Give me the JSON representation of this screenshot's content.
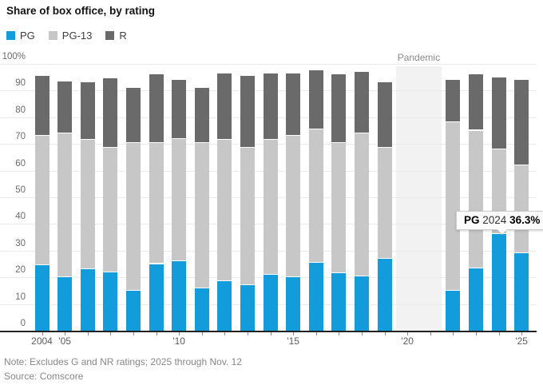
{
  "title": "Share of box office, by rating",
  "legend": [
    {
      "label": "PG",
      "color": "#139cdb"
    },
    {
      "label": "PG-13",
      "color": "#c7c7c7"
    },
    {
      "label": "R",
      "color": "#6a6a6a"
    }
  ],
  "chart_data": {
    "type": "bar",
    "stacked": true,
    "title": "Share of box office, by rating",
    "ylim": [
      0,
      100
    ],
    "ytick_step": 10,
    "ytick_top_label": "100%",
    "grid": true,
    "categories": [
      2004,
      2005,
      2006,
      2007,
      2008,
      2009,
      2010,
      2011,
      2012,
      2013,
      2014,
      2015,
      2016,
      2017,
      2018,
      2019,
      2022,
      2023,
      2024,
      2025
    ],
    "gap_years": [
      2020,
      2021
    ],
    "gap_annotation": "Pandemic",
    "x_axis_labels": [
      {
        "label": "2004",
        "year": 2004
      },
      {
        "label": "'05",
        "year": 2005
      },
      {
        "label": "'10",
        "year": 2010
      },
      {
        "label": "'15",
        "year": 2015
      },
      {
        "label": "'20",
        "year": 2020
      },
      {
        "label": "'25",
        "year": 2025
      }
    ],
    "series": [
      {
        "name": "PG",
        "color": "#139cdb",
        "values": [
          24.5,
          20,
          23,
          22,
          15,
          25,
          26,
          16,
          18.5,
          17,
          21,
          20,
          25.5,
          21.5,
          20.5,
          27,
          15,
          23.5,
          36.3,
          29
        ]
      },
      {
        "name": "PG-13",
        "color": "#c7c7c7",
        "values": [
          48.5,
          54,
          48.5,
          46.5,
          55.5,
          45.5,
          46,
          54.5,
          53,
          51.5,
          50.5,
          53,
          50,
          49,
          53.5,
          41.5,
          63,
          51.5,
          31.7,
          33
        ]
      },
      {
        "name": "R",
        "color": "#6a6a6a",
        "values": [
          22.5,
          19.5,
          21.5,
          26,
          20.5,
          25.5,
          22,
          20.5,
          25,
          27,
          25,
          23.5,
          22,
          25.5,
          23,
          24.5,
          16,
          21,
          27,
          32
        ]
      }
    ],
    "highlight_annotation": "PG 2024 36.3%"
  },
  "tooltip": {
    "series": "PG",
    "year": "2024",
    "value": "36.3%"
  },
  "note": "Note: Excludes G and NR ratings; 2025 through Nov. 12",
  "source": "Source: Comscore"
}
